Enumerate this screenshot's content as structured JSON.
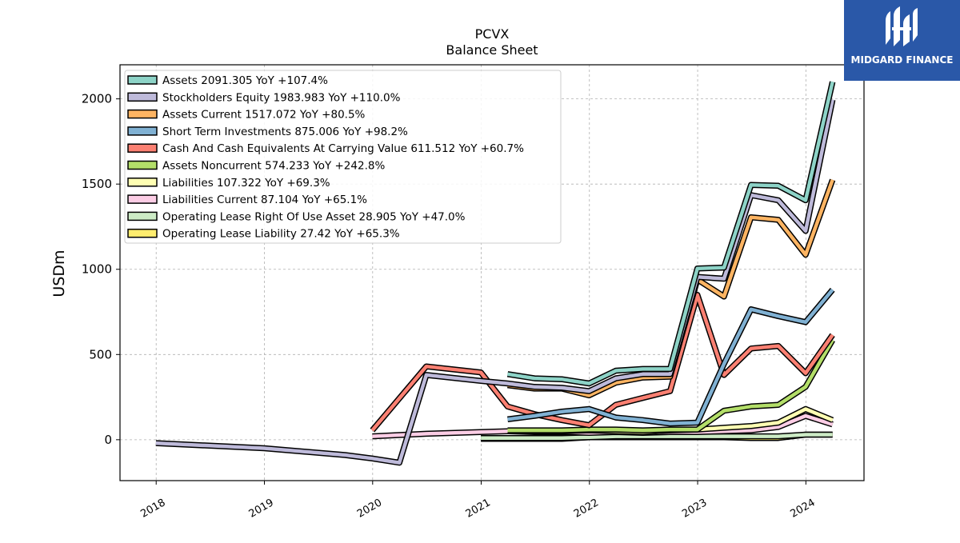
{
  "brand": {
    "name": "MIDGARD FINANCE",
    "color": "#2a58a8",
    "icon": "midgard-logo-icon"
  },
  "chart_data": {
    "type": "line",
    "title": "PCVX",
    "subtitle": "Balance  Sheet",
    "xlabel": "",
    "ylabel": "USDm",
    "xlim": [
      "2017-09-01",
      "2024-07-15"
    ],
    "ylim": [
      -240,
      2200
    ],
    "x_ticks": [
      "2018",
      "2019",
      "2020",
      "2021",
      "2022",
      "2023",
      "2024"
    ],
    "y_ticks": [
      0,
      500,
      1000,
      1500,
      2000
    ],
    "grid": true,
    "legend_position": "top-left",
    "series": [
      {
        "name": "Assets  2091.305 YoY +107.4%",
        "color": "#8dd3c7",
        "points": [
          [
            "2021-03-31",
            385
          ],
          [
            "2021-06-30",
            360
          ],
          [
            "2021-09-30",
            355
          ],
          [
            "2021-12-31",
            330
          ],
          [
            "2022-03-31",
            405
          ],
          [
            "2022-06-30",
            415
          ],
          [
            "2022-09-30",
            415
          ],
          [
            "2022-12-31",
            1005
          ],
          [
            "2023-03-31",
            1010
          ],
          [
            "2023-06-30",
            1495
          ],
          [
            "2023-09-30",
            1490
          ],
          [
            "2023-12-31",
            1405
          ],
          [
            "2024-03-31",
            2100
          ]
        ]
      },
      {
        "name": "Stockholders Equity  1983.983 YoY +110.0%",
        "color": "#bebada",
        "points": [
          [
            "2017-12-31",
            -20
          ],
          [
            "2018-12-31",
            -50
          ],
          [
            "2019-09-30",
            -90
          ],
          [
            "2019-12-31",
            -110
          ],
          [
            "2020-03-31",
            -135
          ],
          [
            "2020-06-30",
            380
          ],
          [
            "2020-12-31",
            345
          ],
          [
            "2021-03-31",
            330
          ],
          [
            "2021-06-30",
            310
          ],
          [
            "2021-09-30",
            305
          ],
          [
            "2021-12-31",
            285
          ],
          [
            "2022-03-31",
            360
          ],
          [
            "2022-06-30",
            385
          ],
          [
            "2022-09-30",
            385
          ],
          [
            "2022-12-31",
            955
          ],
          [
            "2023-03-31",
            945
          ],
          [
            "2023-06-30",
            1435
          ],
          [
            "2023-09-30",
            1405
          ],
          [
            "2023-12-31",
            1225
          ],
          [
            "2024-03-31",
            1995
          ]
        ]
      },
      {
        "name": "Assets Current  1517.072 YoY +80.5%",
        "color": "#fdb462",
        "points": [
          [
            "2021-03-31",
            320
          ],
          [
            "2021-06-30",
            300
          ],
          [
            "2021-09-30",
            300
          ],
          [
            "2021-12-31",
            260
          ],
          [
            "2022-03-31",
            335
          ],
          [
            "2022-06-30",
            365
          ],
          [
            "2022-09-30",
            370
          ],
          [
            "2022-12-31",
            940
          ],
          [
            "2023-03-31",
            840
          ],
          [
            "2023-06-30",
            1305
          ],
          [
            "2023-09-30",
            1290
          ],
          [
            "2023-12-31",
            1085
          ],
          [
            "2024-03-31",
            1525
          ]
        ]
      },
      {
        "name": "Short Term Investments  875.006 YoY +98.2%",
        "color": "#80b1d3",
        "points": [
          [
            "2021-03-31",
            120
          ],
          [
            "2021-06-30",
            140
          ],
          [
            "2021-09-30",
            165
          ],
          [
            "2021-12-31",
            180
          ],
          [
            "2022-03-31",
            130
          ],
          [
            "2022-06-30",
            115
          ],
          [
            "2022-09-30",
            95
          ],
          [
            "2022-12-31",
            100
          ],
          [
            "2023-03-31",
            445
          ],
          [
            "2023-06-30",
            765
          ],
          [
            "2023-09-30",
            725
          ],
          [
            "2023-12-31",
            690
          ],
          [
            "2024-03-31",
            880
          ]
        ]
      },
      {
        "name": "Cash And Cash Equivalents At Carrying Value  611.512 YoY +60.7%",
        "color": "#fb8072",
        "points": [
          [
            "2019-12-31",
            55
          ],
          [
            "2020-06-30",
            430
          ],
          [
            "2020-12-31",
            395
          ],
          [
            "2021-03-31",
            195
          ],
          [
            "2021-06-30",
            150
          ],
          [
            "2021-09-30",
            115
          ],
          [
            "2021-12-31",
            85
          ],
          [
            "2022-03-31",
            205
          ],
          [
            "2022-06-30",
            245
          ],
          [
            "2022-09-30",
            285
          ],
          [
            "2022-12-31",
            850
          ],
          [
            "2023-03-31",
            380
          ],
          [
            "2023-06-30",
            535
          ],
          [
            "2023-09-30",
            550
          ],
          [
            "2023-12-31",
            390
          ],
          [
            "2024-03-31",
            615
          ]
        ]
      },
      {
        "name": "Assets Noncurrent  574.233 YoY +242.8%",
        "color": "#b3de69",
        "points": [
          [
            "2021-03-31",
            55
          ],
          [
            "2021-06-30",
            55
          ],
          [
            "2021-09-30",
            55
          ],
          [
            "2021-12-31",
            60
          ],
          [
            "2022-03-31",
            60
          ],
          [
            "2022-06-30",
            55
          ],
          [
            "2022-09-30",
            60
          ],
          [
            "2022-12-31",
            60
          ],
          [
            "2023-03-31",
            170
          ],
          [
            "2023-06-30",
            195
          ],
          [
            "2023-09-30",
            205
          ],
          [
            "2023-12-31",
            310
          ],
          [
            "2024-03-31",
            585
          ]
        ]
      },
      {
        "name": "Liabilities  107.322 YoY +69.3%",
        "color": "#ffffb3",
        "points": [
          [
            "2021-03-31",
            50
          ],
          [
            "2021-06-30",
            50
          ],
          [
            "2021-09-30",
            50
          ],
          [
            "2021-12-31",
            55
          ],
          [
            "2022-03-31",
            50
          ],
          [
            "2022-06-30",
            45
          ],
          [
            "2022-09-30",
            55
          ],
          [
            "2022-12-31",
            60
          ],
          [
            "2023-03-31",
            70
          ],
          [
            "2023-06-30",
            80
          ],
          [
            "2023-09-30",
            100
          ],
          [
            "2023-12-31",
            180
          ],
          [
            "2024-03-31",
            115
          ]
        ]
      },
      {
        "name": "Liabilities Current  87.104 YoY +65.1%",
        "color": "#fccde5",
        "points": [
          [
            "2019-12-31",
            20
          ],
          [
            "2020-06-30",
            35
          ],
          [
            "2020-12-31",
            45
          ],
          [
            "2021-03-31",
            50
          ],
          [
            "2021-06-30",
            45
          ],
          [
            "2021-09-30",
            45
          ],
          [
            "2021-12-31",
            40
          ],
          [
            "2022-03-31",
            45
          ],
          [
            "2022-06-30",
            40
          ],
          [
            "2022-09-30",
            45
          ],
          [
            "2022-12-31",
            45
          ],
          [
            "2023-03-31",
            50
          ],
          [
            "2023-06-30",
            55
          ],
          [
            "2023-09-30",
            75
          ],
          [
            "2023-12-31",
            140
          ],
          [
            "2024-03-31",
            90
          ]
        ]
      },
      {
        "name": "Operating Lease Right Of Use Asset  28.905 YoY +47.0%",
        "color": "#ccebc5",
        "points": [
          [
            "2020-12-31",
            10
          ],
          [
            "2021-03-31",
            10
          ],
          [
            "2021-06-30",
            10
          ],
          [
            "2021-09-30",
            10
          ],
          [
            "2021-12-31",
            15
          ],
          [
            "2022-03-31",
            20
          ],
          [
            "2022-06-30",
            20
          ],
          [
            "2022-09-30",
            20
          ],
          [
            "2022-12-31",
            20
          ],
          [
            "2023-03-31",
            20
          ],
          [
            "2023-06-30",
            20
          ],
          [
            "2023-09-30",
            20
          ],
          [
            "2023-12-31",
            30
          ],
          [
            "2024-03-31",
            30
          ]
        ]
      },
      {
        "name": "Operating Lease Liability  27.42 YoY +65.3%",
        "color": "#ffed6f",
        "points": [
          [
            "2020-12-31",
            5
          ],
          [
            "2021-03-31",
            5
          ],
          [
            "2021-06-30",
            5
          ],
          [
            "2021-09-30",
            5
          ],
          [
            "2021-12-31",
            15
          ],
          [
            "2022-03-31",
            15
          ],
          [
            "2022-06-30",
            15
          ],
          [
            "2022-09-30",
            15
          ],
          [
            "2022-12-31",
            15
          ],
          [
            "2023-03-31",
            15
          ],
          [
            "2023-06-30",
            10
          ],
          [
            "2023-09-30",
            10
          ],
          [
            "2023-12-31",
            30
          ],
          [
            "2024-03-31",
            30
          ]
        ]
      }
    ]
  }
}
